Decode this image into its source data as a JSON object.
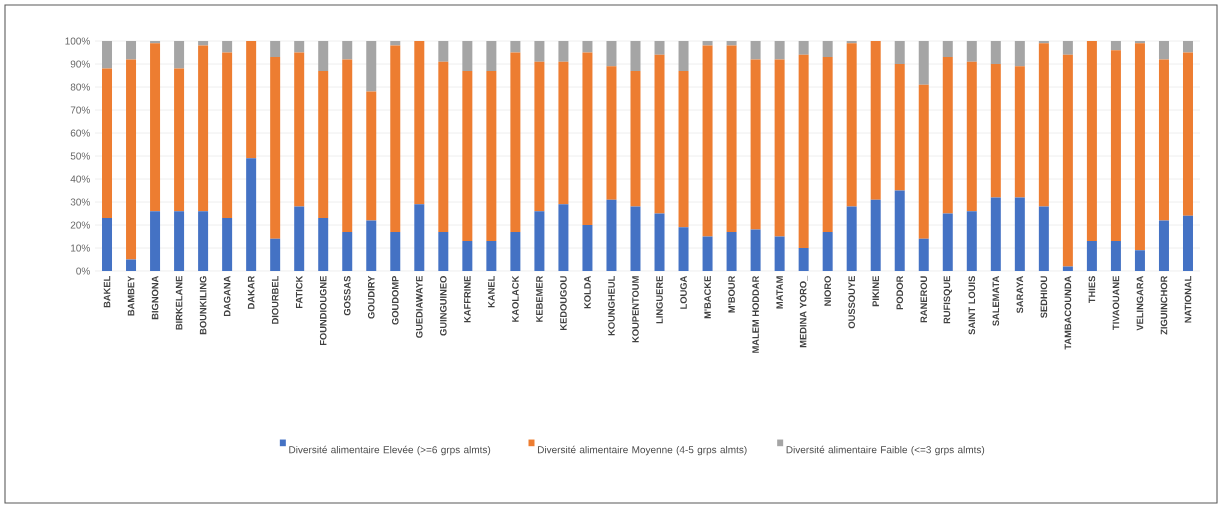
{
  "chart_data": {
    "type": "bar",
    "stacked": true,
    "grid": "y",
    "legend": "bottom",
    "categories": [
      "BAKEL",
      "BAMBEY",
      "BIGNONA",
      "BIRKELANE",
      "BOUNKILING",
      "DAGANA",
      "DAKAR",
      "DIOURBEL",
      "FATICK",
      "FOUNDIOUGNE",
      "GOSSAS",
      "GOUDIRY",
      "GOUDOMP",
      "GUEDIAWAYE",
      "GUINGUINEO",
      "KAFFRINE",
      "KANEL",
      "KAOLACK",
      "KEBEMER",
      "KEDOUGOU",
      "KOLDA",
      "KOUNGHEUL",
      "KOUPENTOUM",
      "LINGUERE",
      "LOUGA",
      "M'BACKE",
      "M'BOUR",
      "MALEM HODDAR",
      "MATAM",
      "MEDINA YORO_",
      "NIORO",
      "OUSSOUYE",
      "PIKINE",
      "PODOR",
      "RANEROU",
      "RUFISQUE",
      "SAINT LOUIS",
      "SALEMATA",
      "SARAYA",
      "SEDHIOU",
      "TAMBACOUNDA",
      "THIES",
      "TIVAOUANE",
      "VELINGARA",
      "ZIGUINCHOR",
      "NATIONAL"
    ],
    "ylim": [
      0,
      100
    ],
    "yticks": [
      {
        "value": 0,
        "label": "0%"
      },
      {
        "value": 10,
        "label": "10%"
      },
      {
        "value": 20,
        "label": "20%"
      },
      {
        "value": 30,
        "label": "30%"
      },
      {
        "value": 40,
        "label": "40%"
      },
      {
        "value": 50,
        "label": "50%"
      },
      {
        "value": 60,
        "label": "60%"
      },
      {
        "value": 70,
        "label": "70%"
      },
      {
        "value": 80,
        "label": "80%"
      },
      {
        "value": 90,
        "label": "90%"
      },
      {
        "value": 100,
        "label": "100%"
      }
    ],
    "series": [
      {
        "name": "Diversité alimentaire Elevée (>=6 grps almts)",
        "color": "#4472c4",
        "values": [
          23,
          5,
          26,
          26,
          26,
          23,
          49,
          14,
          28,
          23,
          17,
          22,
          17,
          29,
          17,
          13,
          13,
          17,
          26,
          29,
          20,
          31,
          28,
          25,
          19,
          15,
          17,
          18,
          15,
          10,
          17,
          28,
          31,
          35,
          14,
          25,
          26,
          32,
          32,
          28,
          2,
          13,
          13,
          9,
          22,
          24
        ]
      },
      {
        "name": "Diversité alimentaire Moyenne (4-5 grps almts)",
        "color": "#ed7d31",
        "values": [
          65,
          87,
          73,
          62,
          72,
          72,
          51,
          79,
          67,
          64,
          75,
          56,
          81,
          71,
          74,
          74,
          74,
          78,
          65,
          62,
          75,
          58,
          59,
          69,
          68,
          83,
          81,
          74,
          77,
          84,
          76,
          71,
          69,
          55,
          67,
          68,
          65,
          58,
          57,
          71,
          92,
          87,
          83,
          90,
          70,
          71
        ]
      },
      {
        "name": "Diversité alimentaire Faible (<=3 grps almts)",
        "color": "#a5a5a5",
        "values": [
          12,
          8,
          1,
          12,
          2,
          5,
          0,
          7,
          5,
          13,
          8,
          22,
          2,
          0,
          9,
          13,
          13,
          5,
          9,
          9,
          5,
          11,
          13,
          6,
          13,
          2,
          2,
          8,
          8,
          6,
          7,
          1,
          0,
          10,
          19,
          7,
          9,
          10,
          11,
          1,
          6,
          0,
          4,
          1,
          8,
          5
        ]
      }
    ]
  }
}
